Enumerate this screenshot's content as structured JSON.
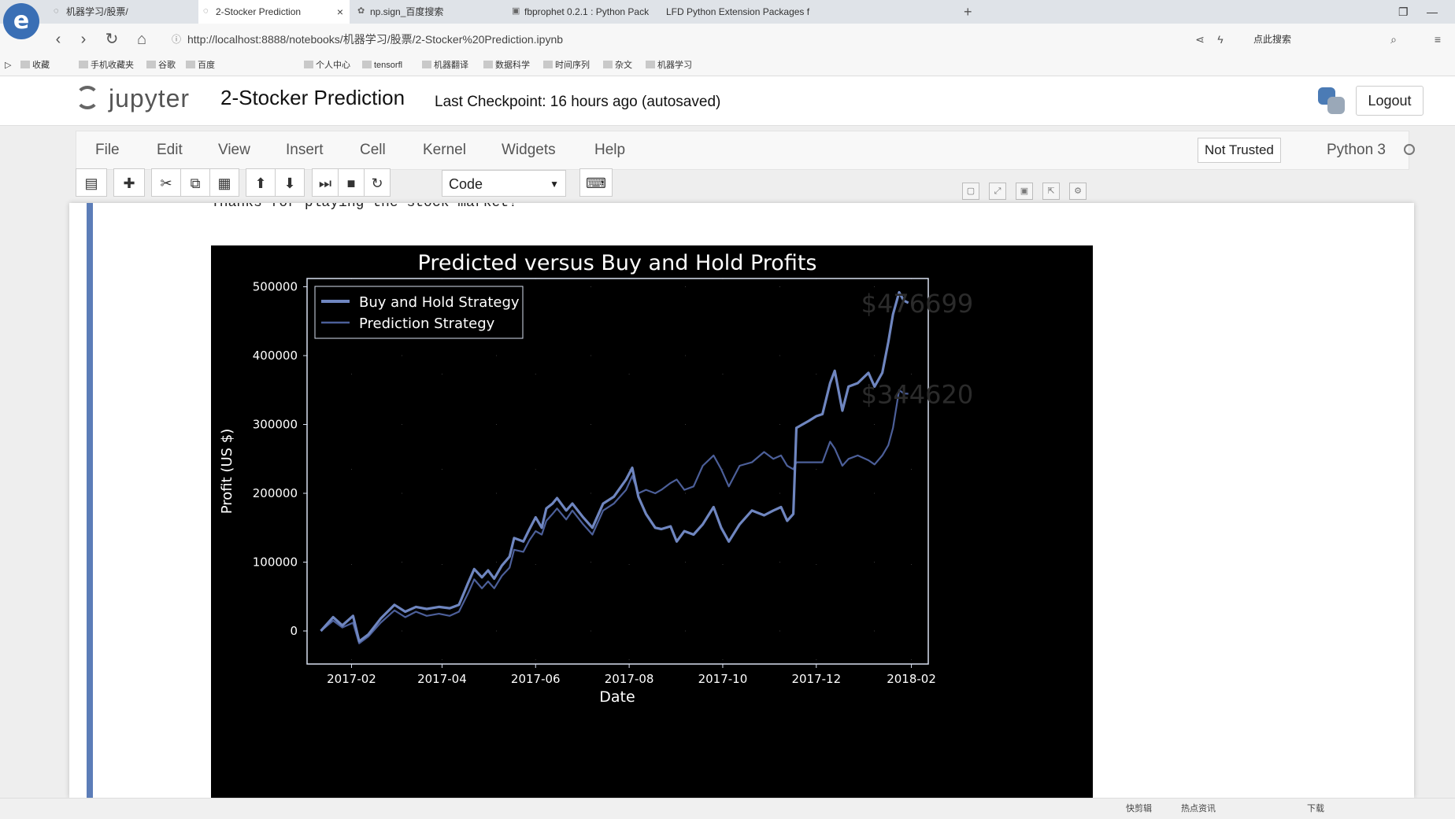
{
  "browser": {
    "logo": "e",
    "tabs": [
      {
        "label": "机器学习/股票/",
        "icon": "loading-icon"
      },
      {
        "label": "2-Stocker Prediction",
        "icon": "loading-icon",
        "close": "×"
      },
      {
        "label": "np.sign_百度搜索",
        "icon": "paw-icon"
      },
      {
        "label": "fbprophet 0.2.1 : Python Pack",
        "icon": "package-icon"
      },
      {
        "label": "LFD Python Extension Packages f",
        "icon": "lfd-icon"
      }
    ],
    "new_tab": "+",
    "url": "http://localhost:8888/notebooks/机器学习/股票/2-Stocker%20Prediction.ipynb",
    "search_label": "点此搜索",
    "bookmarks": [
      "收藏",
      "手机收藏夹",
      "谷歌",
      "百度",
      "个人中心",
      "tensorfl",
      "机器翻译",
      "数据科学",
      "时间序列",
      "杂文",
      "机器学习"
    ]
  },
  "jupyter": {
    "logo_text": "jupyter",
    "notebook_title": "2-Stocker Prediction",
    "checkpoint": "Last Checkpoint: 16 hours ago (autosaved)",
    "logout": "Logout",
    "menu": [
      "File",
      "Edit",
      "View",
      "Insert",
      "Cell",
      "Kernel",
      "Widgets",
      "Help"
    ],
    "not_trusted": "Not Trusted",
    "kernel": "Python 3",
    "cell_type": "Code"
  },
  "output": {
    "text": "Thanks for playing the stock market!"
  },
  "chart_data": {
    "type": "line",
    "title": "Predicted versus Buy and Hold Profits",
    "xlabel": "Date",
    "ylabel": "Profit  (US $)",
    "xlim": [
      "2017-01-03",
      "2018-02-12"
    ],
    "ylim": [
      -48000,
      512000
    ],
    "xticks": [
      "2017-02",
      "2017-04",
      "2017-06",
      "2017-08",
      "2017-10",
      "2017-12",
      "2018-02"
    ],
    "yticks": [
      0,
      100000,
      200000,
      300000,
      400000,
      500000
    ],
    "ytick_labels": [
      "0",
      "100000",
      "200000",
      "300000",
      "400000",
      "500000"
    ],
    "grid": "dotted",
    "legend": "top-left",
    "annotations": [
      "$476699",
      "$344620"
    ],
    "series": [
      {
        "name": "Buy and Hold Strategy",
        "color": "#6f86c0",
        "points": [
          [
            "2017-01-12",
            0
          ],
          [
            "2017-01-20",
            20000
          ],
          [
            "2017-01-26",
            8000
          ],
          [
            "2017-02-02",
            22000
          ],
          [
            "2017-02-06",
            -15000
          ],
          [
            "2017-02-12",
            -5000
          ],
          [
            "2017-02-20",
            18000
          ],
          [
            "2017-03-01",
            38000
          ],
          [
            "2017-03-08",
            28000
          ],
          [
            "2017-03-15",
            35000
          ],
          [
            "2017-03-22",
            32000
          ],
          [
            "2017-03-30",
            35000
          ],
          [
            "2017-04-06",
            33000
          ],
          [
            "2017-04-12",
            38000
          ],
          [
            "2017-04-18",
            70000
          ],
          [
            "2017-04-22",
            90000
          ],
          [
            "2017-04-27",
            78000
          ],
          [
            "2017-05-01",
            88000
          ],
          [
            "2017-05-05",
            76000
          ],
          [
            "2017-05-10",
            95000
          ],
          [
            "2017-05-15",
            108000
          ],
          [
            "2017-05-18",
            135000
          ],
          [
            "2017-05-24",
            130000
          ],
          [
            "2017-05-28",
            148000
          ],
          [
            "2017-06-01",
            165000
          ],
          [
            "2017-06-05",
            150000
          ],
          [
            "2017-06-08",
            178000
          ],
          [
            "2017-06-12",
            185000
          ],
          [
            "2017-06-15",
            193000
          ],
          [
            "2017-06-21",
            175000
          ],
          [
            "2017-06-25",
            185000
          ],
          [
            "2017-07-02",
            165000
          ],
          [
            "2017-07-08",
            150000
          ],
          [
            "2017-07-15",
            185000
          ],
          [
            "2017-07-22",
            195000
          ],
          [
            "2017-07-30",
            220000
          ],
          [
            "2017-08-03",
            237000
          ],
          [
            "2017-08-07",
            195000
          ],
          [
            "2017-08-12",
            170000
          ],
          [
            "2017-08-18",
            150000
          ],
          [
            "2017-08-22",
            148000
          ],
          [
            "2017-08-28",
            152000
          ],
          [
            "2017-09-01",
            130000
          ],
          [
            "2017-09-06",
            145000
          ],
          [
            "2017-09-12",
            140000
          ],
          [
            "2017-09-18",
            155000
          ],
          [
            "2017-09-25",
            180000
          ],
          [
            "2017-09-30",
            150000
          ],
          [
            "2017-10-05",
            130000
          ],
          [
            "2017-10-12",
            155000
          ],
          [
            "2017-10-20",
            175000
          ],
          [
            "2017-10-28",
            168000
          ],
          [
            "2017-11-03",
            175000
          ],
          [
            "2017-11-08",
            180000
          ],
          [
            "2017-11-12",
            160000
          ],
          [
            "2017-11-16",
            170000
          ],
          [
            "2017-11-18",
            295000
          ],
          [
            "2017-11-26",
            305000
          ],
          [
            "2017-12-01",
            312000
          ],
          [
            "2017-12-05",
            315000
          ],
          [
            "2017-12-10",
            360000
          ],
          [
            "2017-12-13",
            378000
          ],
          [
            "2017-12-18",
            320000
          ],
          [
            "2017-12-22",
            355000
          ],
          [
            "2017-12-28",
            360000
          ],
          [
            "2018-01-04",
            375000
          ],
          [
            "2018-01-08",
            355000
          ],
          [
            "2018-01-13",
            375000
          ],
          [
            "2018-01-17",
            420000
          ],
          [
            "2018-01-20",
            460000
          ],
          [
            "2018-01-24",
            492000
          ],
          [
            "2018-01-27",
            480000
          ],
          [
            "2018-01-30",
            476699
          ]
        ]
      },
      {
        "name": "Prediction Strategy",
        "color": "#4c5f99",
        "points": [
          [
            "2017-01-12",
            0
          ],
          [
            "2017-01-20",
            15000
          ],
          [
            "2017-01-26",
            5000
          ],
          [
            "2017-02-02",
            12000
          ],
          [
            "2017-02-06",
            -18000
          ],
          [
            "2017-02-12",
            -8000
          ],
          [
            "2017-02-20",
            12000
          ],
          [
            "2017-03-01",
            30000
          ],
          [
            "2017-03-08",
            20000
          ],
          [
            "2017-03-15",
            28000
          ],
          [
            "2017-03-22",
            22000
          ],
          [
            "2017-03-30",
            25000
          ],
          [
            "2017-04-06",
            22000
          ],
          [
            "2017-04-12",
            28000
          ],
          [
            "2017-04-18",
            55000
          ],
          [
            "2017-04-22",
            75000
          ],
          [
            "2017-04-27",
            62000
          ],
          [
            "2017-05-01",
            72000
          ],
          [
            "2017-05-05",
            62000
          ],
          [
            "2017-05-10",
            80000
          ],
          [
            "2017-05-15",
            92000
          ],
          [
            "2017-05-18",
            118000
          ],
          [
            "2017-05-24",
            115000
          ],
          [
            "2017-05-28",
            132000
          ],
          [
            "2017-06-01",
            145000
          ],
          [
            "2017-06-05",
            140000
          ],
          [
            "2017-06-08",
            160000
          ],
          [
            "2017-06-12",
            170000
          ],
          [
            "2017-06-15",
            178000
          ],
          [
            "2017-06-21",
            162000
          ],
          [
            "2017-06-25",
            175000
          ],
          [
            "2017-07-02",
            155000
          ],
          [
            "2017-07-08",
            140000
          ],
          [
            "2017-07-15",
            175000
          ],
          [
            "2017-07-22",
            185000
          ],
          [
            "2017-07-30",
            205000
          ],
          [
            "2017-08-03",
            225000
          ],
          [
            "2017-08-07",
            200000
          ],
          [
            "2017-08-12",
            205000
          ],
          [
            "2017-08-18",
            200000
          ],
          [
            "2017-08-22",
            205000
          ],
          [
            "2017-08-28",
            215000
          ],
          [
            "2017-09-01",
            220000
          ],
          [
            "2017-09-06",
            205000
          ],
          [
            "2017-09-12",
            210000
          ],
          [
            "2017-09-18",
            240000
          ],
          [
            "2017-09-25",
            255000
          ],
          [
            "2017-09-30",
            235000
          ],
          [
            "2017-10-05",
            210000
          ],
          [
            "2017-10-12",
            240000
          ],
          [
            "2017-10-20",
            245000
          ],
          [
            "2017-10-28",
            260000
          ],
          [
            "2017-11-03",
            250000
          ],
          [
            "2017-11-08",
            255000
          ],
          [
            "2017-11-12",
            240000
          ],
          [
            "2017-11-16",
            235000
          ],
          [
            "2017-11-18",
            245000
          ],
          [
            "2017-11-26",
            245000
          ],
          [
            "2017-12-01",
            245000
          ],
          [
            "2017-12-05",
            245000
          ],
          [
            "2017-12-10",
            275000
          ],
          [
            "2017-12-13",
            265000
          ],
          [
            "2017-12-18",
            240000
          ],
          [
            "2017-12-22",
            250000
          ],
          [
            "2017-12-28",
            255000
          ],
          [
            "2018-01-04",
            248000
          ],
          [
            "2018-01-08",
            242000
          ],
          [
            "2018-01-13",
            255000
          ],
          [
            "2018-01-17",
            270000
          ],
          [
            "2018-01-20",
            295000
          ],
          [
            "2018-01-24",
            350000
          ],
          [
            "2018-01-27",
            345000
          ],
          [
            "2018-01-30",
            344620
          ]
        ]
      }
    ]
  },
  "statusbar": {
    "items": [
      "快剪辑",
      "热点资讯",
      "下载"
    ]
  }
}
